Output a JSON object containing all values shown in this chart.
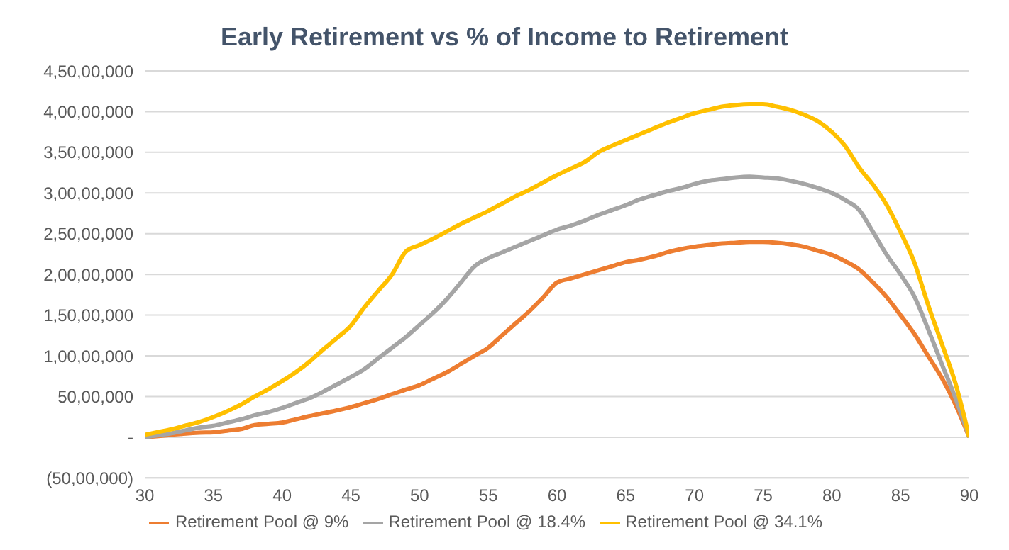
{
  "chart_data": {
    "type": "line",
    "title": "Early Retirement vs % of Income to Retirement",
    "x": [
      30,
      31,
      32,
      33,
      34,
      35,
      36,
      37,
      38,
      39,
      40,
      41,
      42,
      43,
      44,
      45,
      46,
      47,
      48,
      49,
      50,
      51,
      52,
      53,
      54,
      55,
      56,
      57,
      58,
      59,
      60,
      61,
      62,
      63,
      64,
      65,
      66,
      67,
      68,
      69,
      70,
      71,
      72,
      73,
      74,
      75,
      76,
      77,
      78,
      79,
      80,
      81,
      82,
      83,
      84,
      85,
      86,
      87,
      88,
      89,
      90
    ],
    "xlim": [
      30,
      90
    ],
    "xticks": [
      30,
      35,
      40,
      45,
      50,
      55,
      60,
      65,
      70,
      75,
      80,
      85,
      90
    ],
    "ylim": [
      -5000000,
      45000000
    ],
    "yticks": [
      {
        "value": -5000000,
        "label": "(50,00,000)"
      },
      {
        "value": 0,
        "label": "-"
      },
      {
        "value": 5000000,
        "label": "50,00,000"
      },
      {
        "value": 10000000,
        "label": "1,00,00,000"
      },
      {
        "value": 15000000,
        "label": "1,50,00,000"
      },
      {
        "value": 20000000,
        "label": "2,00,00,000"
      },
      {
        "value": 25000000,
        "label": "2,50,00,000"
      },
      {
        "value": 30000000,
        "label": "3,00,00,000"
      },
      {
        "value": 35000000,
        "label": "3,50,00,000"
      },
      {
        "value": 40000000,
        "label": "4,00,00,000"
      },
      {
        "value": 45000000,
        "label": "4,50,00,000"
      }
    ],
    "grid": "y",
    "legend": "bottom",
    "marker": "none",
    "line_style": "solid",
    "series": [
      {
        "name": "Retirement Pool @ 9%",
        "color": "#ed7d31",
        "values": [
          0,
          150000,
          300000,
          450000,
          550000,
          600000,
          800000,
          1000000,
          1500000,
          1650000,
          1800000,
          2200000,
          2600000,
          2950000,
          3300000,
          3700000,
          4200000,
          4700000,
          5300000,
          5850000,
          6400000,
          7200000,
          8000000,
          9000000,
          10000000,
          11000000,
          12500000,
          14000000,
          15500000,
          17200000,
          19000000,
          19500000,
          20000000,
          20500000,
          21000000,
          21500000,
          21800000,
          22200000,
          22700000,
          23100000,
          23400000,
          23600000,
          23800000,
          23900000,
          24000000,
          24000000,
          23900000,
          23700000,
          23400000,
          22900000,
          22400000,
          21600000,
          20600000,
          19000000,
          17200000,
          15000000,
          12700000,
          10000000,
          7300000,
          4000000,
          0
        ]
      },
      {
        "name": "Retirement Pool @ 18.4%",
        "color": "#a5a5a5",
        "values": [
          0,
          250000,
          500000,
          850000,
          1200000,
          1400000,
          1800000,
          2200000,
          2700000,
          3100000,
          3600000,
          4200000,
          4800000,
          5600000,
          6500000,
          7400000,
          8400000,
          9700000,
          11000000,
          12300000,
          13800000,
          15300000,
          17000000,
          19000000,
          21000000,
          22000000,
          22700000,
          23400000,
          24100000,
          24800000,
          25500000,
          26000000,
          26600000,
          27300000,
          27900000,
          28500000,
          29200000,
          29700000,
          30200000,
          30600000,
          31100000,
          31500000,
          31700000,
          31900000,
          32000000,
          31900000,
          31800000,
          31500000,
          31100000,
          30600000,
          30000000,
          29100000,
          27900000,
          25200000,
          22400000,
          20000000,
          17300000,
          13300000,
          9000000,
          4800000,
          0
        ]
      },
      {
        "name": "Retirement Pool @ 34.1%",
        "color": "#ffc000",
        "values": [
          300000,
          650000,
          1000000,
          1450000,
          1900000,
          2500000,
          3200000,
          4000000,
          5000000,
          5900000,
          6900000,
          8000000,
          9300000,
          10800000,
          12200000,
          13700000,
          16000000,
          18000000,
          20000000,
          22800000,
          23600000,
          24400000,
          25300000,
          26200000,
          27000000,
          27800000,
          28700000,
          29600000,
          30400000,
          31300000,
          32200000,
          33000000,
          33800000,
          35000000,
          35800000,
          36500000,
          37200000,
          37900000,
          38600000,
          39200000,
          39800000,
          40200000,
          40600000,
          40800000,
          40900000,
          40900000,
          40600000,
          40200000,
          39600000,
          38800000,
          37500000,
          35700000,
          33100000,
          31000000,
          28500000,
          25200000,
          21500000,
          16300000,
          11500000,
          6600000,
          0
        ]
      }
    ]
  }
}
